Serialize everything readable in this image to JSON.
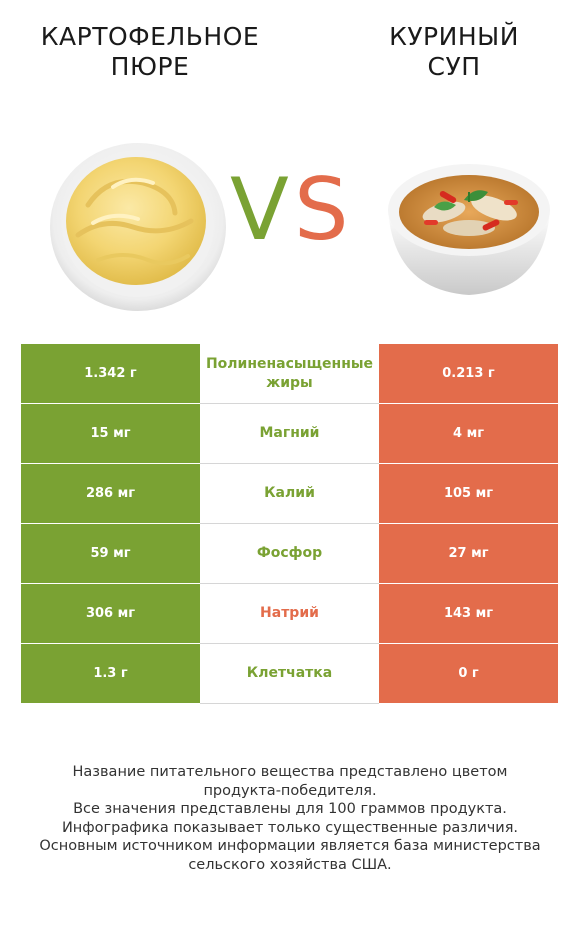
{
  "header": {
    "left_title_line1": "КАРТОФЕЛЬНОЕ",
    "left_title_line2": "ПЮРЕ",
    "right_title_line1": "КУРИНЫЙ",
    "right_title_line2": "СУП",
    "vs_v": "V",
    "vs_s": "S"
  },
  "colors": {
    "left_accent": "#7aa233",
    "right_accent": "#e36c4b"
  },
  "rows": [
    {
      "left": "1.342 г",
      "nutrient": "Полиненасыщенные жиры",
      "right": "0.213 г",
      "winner": "left"
    },
    {
      "left": "15 мг",
      "nutrient": "Магний",
      "right": "4 мг",
      "winner": "left"
    },
    {
      "left": "286 мг",
      "nutrient": "Калий",
      "right": "105 мг",
      "winner": "left"
    },
    {
      "left": "59 мг",
      "nutrient": "Фосфор",
      "right": "27 мг",
      "winner": "left"
    },
    {
      "left": "306 мг",
      "nutrient": "Натрий",
      "right": "143 мг",
      "winner": "right"
    },
    {
      "left": "1.3 г",
      "nutrient": "Клетчатка",
      "right": "0 г",
      "winner": "left"
    }
  ],
  "footer": {
    "line1": "Название питательного вещества представлено цветом",
    "line2": "продукта-победителя.",
    "line3": "Все значения представлены для 100 граммов продукта.",
    "line4": "Инфографика показывает только существенные различия.",
    "line5": "Основным источником информации является база министерства",
    "line6": "сельского хозяйства США."
  }
}
